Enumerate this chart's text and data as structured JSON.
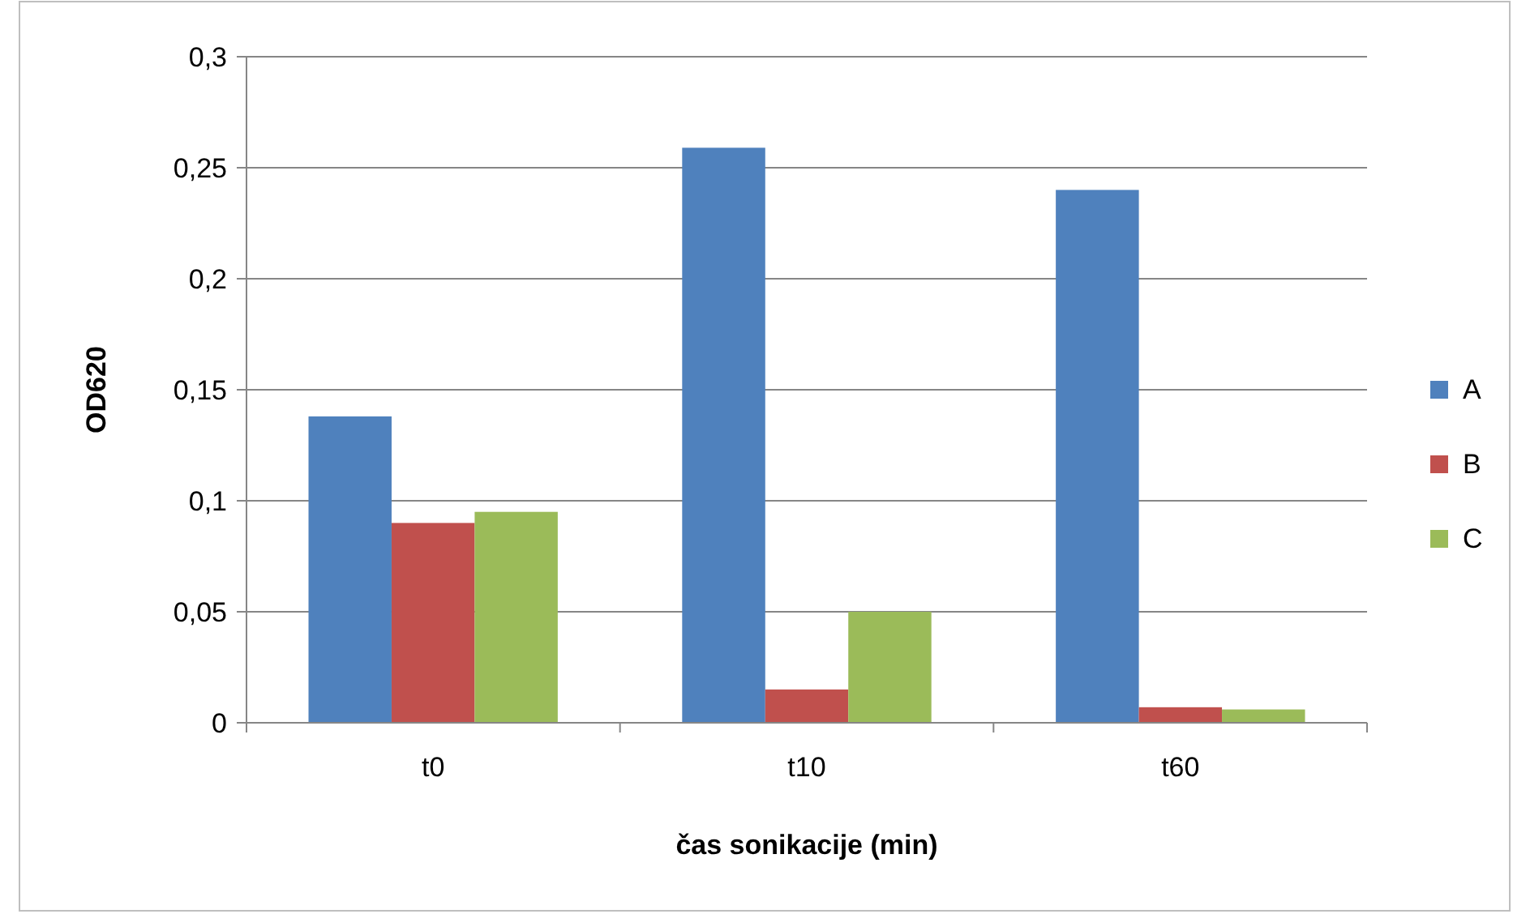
{
  "chart_data": {
    "type": "bar",
    "xlabel": "čas sonikacije (min)",
    "ylabel": "OD620",
    "categories": [
      "t0",
      "t10",
      "t60"
    ],
    "series": [
      {
        "name": "A",
        "color": "#4f81bd",
        "values": [
          0.138,
          0.259,
          0.24
        ]
      },
      {
        "name": "B",
        "color": "#c0504d",
        "values": [
          0.09,
          0.015,
          0.007
        ]
      },
      {
        "name": "C",
        "color": "#9bbb59",
        "values": [
          0.095,
          0.05,
          0.006
        ]
      }
    ],
    "ylim": [
      0,
      0.3
    ],
    "yticks": [
      0,
      {
        "value": 0.05,
        "label": "0,05"
      },
      {
        "value": 0.1,
        "label": "0,1"
      },
      {
        "value": 0.15,
        "label": "0,15"
      },
      {
        "value": 0.2,
        "label": "0,2"
      },
      {
        "value": 0.25,
        "label": "0,25"
      },
      {
        "value": 0.3,
        "label": "0,3"
      }
    ],
    "grid": "y",
    "legend": "right"
  }
}
